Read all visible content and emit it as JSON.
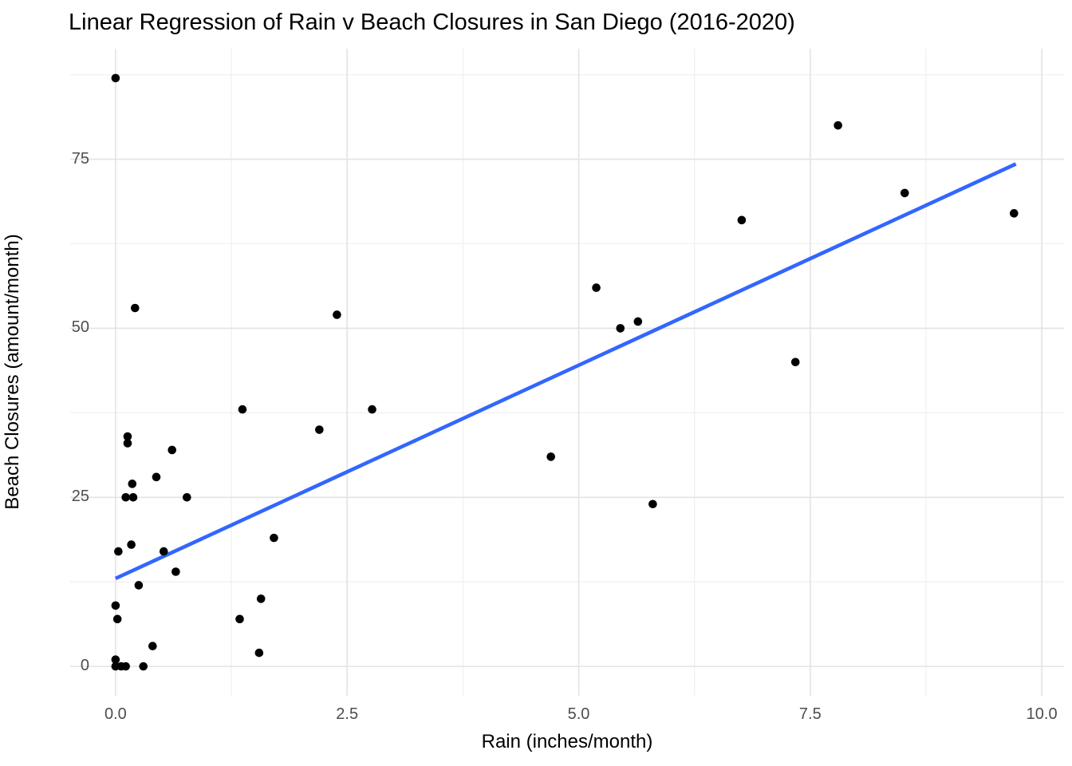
{
  "chart_data": {
    "type": "scatter",
    "title": "Linear Regression of Rain v Beach Closures in San Diego (2016-2020)",
    "xlabel": "Rain (inches/month)",
    "ylabel": "Beach Closures (amount/month)",
    "xlim": [
      -0.49,
      10.24
    ],
    "ylim": [
      -4.35,
      91.35
    ],
    "x_ticks": [
      0.0,
      2.5,
      5.0,
      7.5,
      10.0
    ],
    "x_tick_labels": [
      "0.0",
      "2.5",
      "5.0",
      "7.5",
      "10.0"
    ],
    "x_minor_ticks": [
      1.25,
      3.75,
      6.25,
      8.75
    ],
    "y_ticks": [
      0,
      25,
      50,
      75
    ],
    "y_tick_labels": [
      "0",
      "25",
      "50",
      "75"
    ],
    "y_minor_ticks": [
      12.5,
      37.5,
      62.5,
      87.5
    ],
    "grid": true,
    "legend": false,
    "points": [
      [
        0.0,
        87
      ],
      [
        0.21,
        53
      ],
      [
        0.13,
        34
      ],
      [
        0.13,
        33
      ],
      [
        0.61,
        32
      ],
      [
        0.44,
        28
      ],
      [
        0.18,
        27
      ],
      [
        0.11,
        25
      ],
      [
        0.19,
        25
      ],
      [
        0.77,
        25
      ],
      [
        0.17,
        18
      ],
      [
        0.03,
        17
      ],
      [
        0.52,
        17
      ],
      [
        0.65,
        14
      ],
      [
        0.25,
        12
      ],
      [
        0.0,
        9
      ],
      [
        0.02,
        7
      ],
      [
        0.4,
        3
      ],
      [
        0.0,
        1
      ],
      [
        0.0,
        0
      ],
      [
        0.06,
        0
      ],
      [
        0.11,
        0
      ],
      [
        0.3,
        0
      ],
      [
        1.34,
        7
      ],
      [
        1.37,
        38
      ],
      [
        1.55,
        2
      ],
      [
        1.57,
        10
      ],
      [
        1.71,
        19
      ],
      [
        2.2,
        35
      ],
      [
        2.39,
        52
      ],
      [
        2.77,
        38
      ],
      [
        4.7,
        31
      ],
      [
        5.19,
        56
      ],
      [
        5.45,
        50
      ],
      [
        5.64,
        51
      ],
      [
        5.8,
        24
      ],
      [
        6.76,
        66
      ],
      [
        7.34,
        45
      ],
      [
        7.8,
        80
      ],
      [
        8.52,
        70
      ],
      [
        9.7,
        67
      ]
    ],
    "regression_line": {
      "x_start": 0.0,
      "y_start": 13.0,
      "x_end": 9.72,
      "y_end": 74.3
    }
  },
  "colors": {
    "point": "#000000",
    "line": "#3366FF",
    "grid_major": "#e3e3e3",
    "grid_minor": "#f1f1f1",
    "tick_text": "#4d4d4d",
    "title_text": "#000000"
  }
}
